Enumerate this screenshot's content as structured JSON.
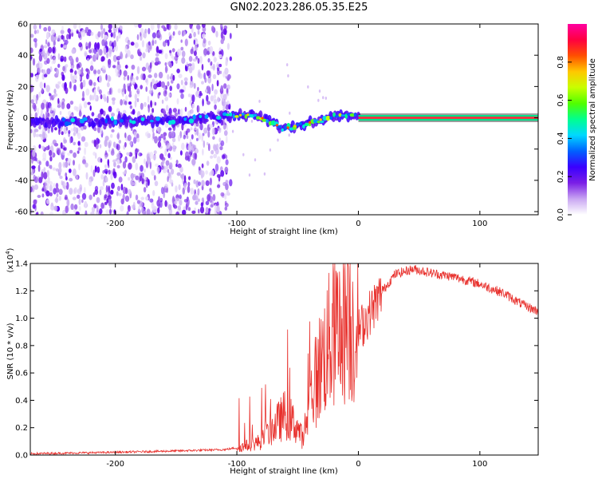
{
  "title": "GN02.2023.286.05.35.E25",
  "chart_data": [
    {
      "type": "heatmap",
      "xlabel": "Height of straight line (km)",
      "ylabel": "Frequency (Hz)",
      "xlim": [
        -270,
        148
      ],
      "ylim": [
        -62,
        60
      ],
      "xticks": [
        -200,
        -100,
        0,
        100
      ],
      "yticks": [
        -60,
        -40,
        -20,
        0,
        20,
        40,
        60
      ],
      "colorbar": {
        "label": "Normalized spectral amplitude",
        "range": [
          0,
          1
        ],
        "ticks": [
          "0.0",
          "0.2",
          "0.4",
          "0.6",
          "0.8"
        ],
        "colors": [
          "#ffffff",
          "#c9a6f2",
          "#7a1ee6",
          "#3a00ff",
          "#0060ff",
          "#00d8ff",
          "#00ff90",
          "#50ff00",
          "#c8ff00",
          "#ffc800",
          "#ff5000",
          "#ff0040",
          "#ff00a0"
        ]
      },
      "features": {
        "noise_region_x": [
          -270,
          -105
        ],
        "ridge": [
          [
            -270,
            -3
          ],
          [
            -200,
            -2
          ],
          [
            -150,
            -2
          ],
          [
            -110,
            1
          ],
          [
            -90,
            2
          ],
          [
            -75,
            -1
          ],
          [
            -62,
            -7
          ],
          [
            -50,
            -5
          ],
          [
            -35,
            -2
          ],
          [
            -20,
            1
          ],
          [
            -10,
            2
          ],
          [
            0,
            0
          ],
          [
            148,
            0
          ]
        ],
        "clean_line_x": [
          0,
          148
        ]
      }
    },
    {
      "type": "line",
      "xlabel": "Height of straight line (km)",
      "ylabel": "SNR (10 * v/v)",
      "yscale_label": "(x10",
      "yscale_exp": "4",
      "xlim": [
        -270,
        148
      ],
      "ylim": [
        0,
        1.4
      ],
      "xticks": [
        -200,
        -100,
        0,
        100
      ],
      "yticks": [
        "0.0",
        "0.2",
        "0.4",
        "0.6",
        "0.8",
        "1.0",
        "1.2",
        "1.4"
      ],
      "color": "#e8302c",
      "envelope": [
        [
          -270,
          0.01
        ],
        [
          -200,
          0.02
        ],
        [
          -150,
          0.03
        ],
        [
          -110,
          0.04
        ],
        [
          -95,
          0.06
        ],
        [
          -80,
          0.1
        ],
        [
          -70,
          0.2
        ],
        [
          -60,
          0.3
        ],
        [
          -50,
          0.2
        ],
        [
          -45,
          0.1
        ],
        [
          -40,
          0.4
        ],
        [
          -30,
          0.7
        ],
        [
          -20,
          0.9
        ],
        [
          -10,
          1.0
        ],
        [
          0,
          0.9
        ],
        [
          10,
          1.05
        ],
        [
          20,
          1.2
        ],
        [
          30,
          1.32
        ],
        [
          45,
          1.36
        ],
        [
          60,
          1.33
        ],
        [
          80,
          1.3
        ],
        [
          100,
          1.25
        ],
        [
          120,
          1.18
        ],
        [
          135,
          1.1
        ],
        [
          148,
          1.05
        ]
      ]
    }
  ]
}
